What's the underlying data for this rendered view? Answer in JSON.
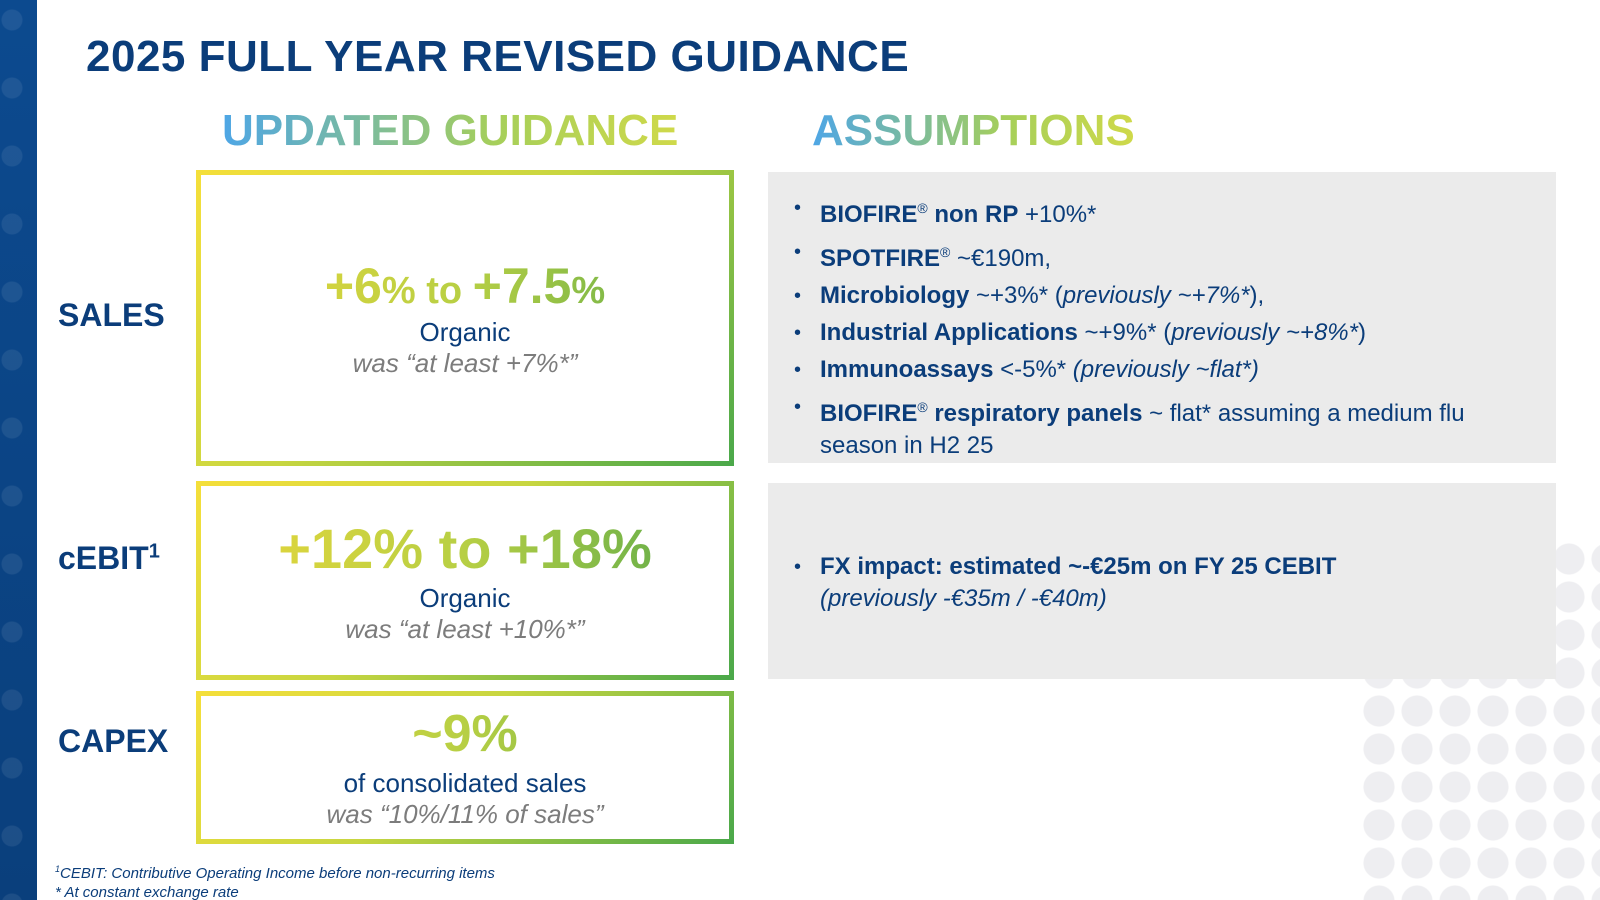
{
  "title": "2025 FULL YEAR REVISED GUIDANCE",
  "headers": {
    "guidance": "UPDATED GUIDANCE",
    "assumptions": "ASSUMPTIONS"
  },
  "rows": {
    "sales": {
      "label": "SALES",
      "low": "+6",
      "pct1": "%",
      "to": " to ",
      "high": "+7.5",
      "pct2": "%",
      "sub": "Organic",
      "was": "was “at least +7%*”"
    },
    "cebit": {
      "label": "cEBIT",
      "label_sup": "1",
      "value": "+12% to +18%",
      "sub": "Organic",
      "was": "was “at least +10%*”"
    },
    "capex": {
      "label": "CAPEX",
      "value": "~9%",
      "sub": "of consolidated sales",
      "was": "was “10%/11% of sales”"
    }
  },
  "assumptions_1": [
    {
      "bold": "BIOFIRE",
      "reg": "®",
      "bold2": " non RP",
      "text": " +10%*"
    },
    {
      "bold": "SPOTFIRE",
      "reg": "®",
      "text": " ~€190m,"
    },
    {
      "bold": "Microbiology",
      "text": " ~+3%* (",
      "italic": "previously ~+7%*",
      "text2": "),"
    },
    {
      "bold": "Industrial Applications",
      "text": " ~+9%* (",
      "italic": "previously ~+8%*",
      "text2": ")"
    },
    {
      "bold": "Immunoassays",
      "text": " <-5%* ",
      "italic": "(previously ~flat*)"
    },
    {
      "bold": "BIOFIRE",
      "reg": "®",
      "bold2": " respiratory panels",
      "text": " ~ flat* assuming a medium flu season in H2 25"
    }
  ],
  "assumptions_2": {
    "bold": "FX impact: estimated ~-€25m on FY 25 CEBIT",
    "italic": "(previously -€35m / -€40m)"
  },
  "footnotes": {
    "sup": "1",
    "note1": "CEBIT: Contributive Operating Income before non-recurring items",
    "note2": "* At constant exchange rate"
  }
}
